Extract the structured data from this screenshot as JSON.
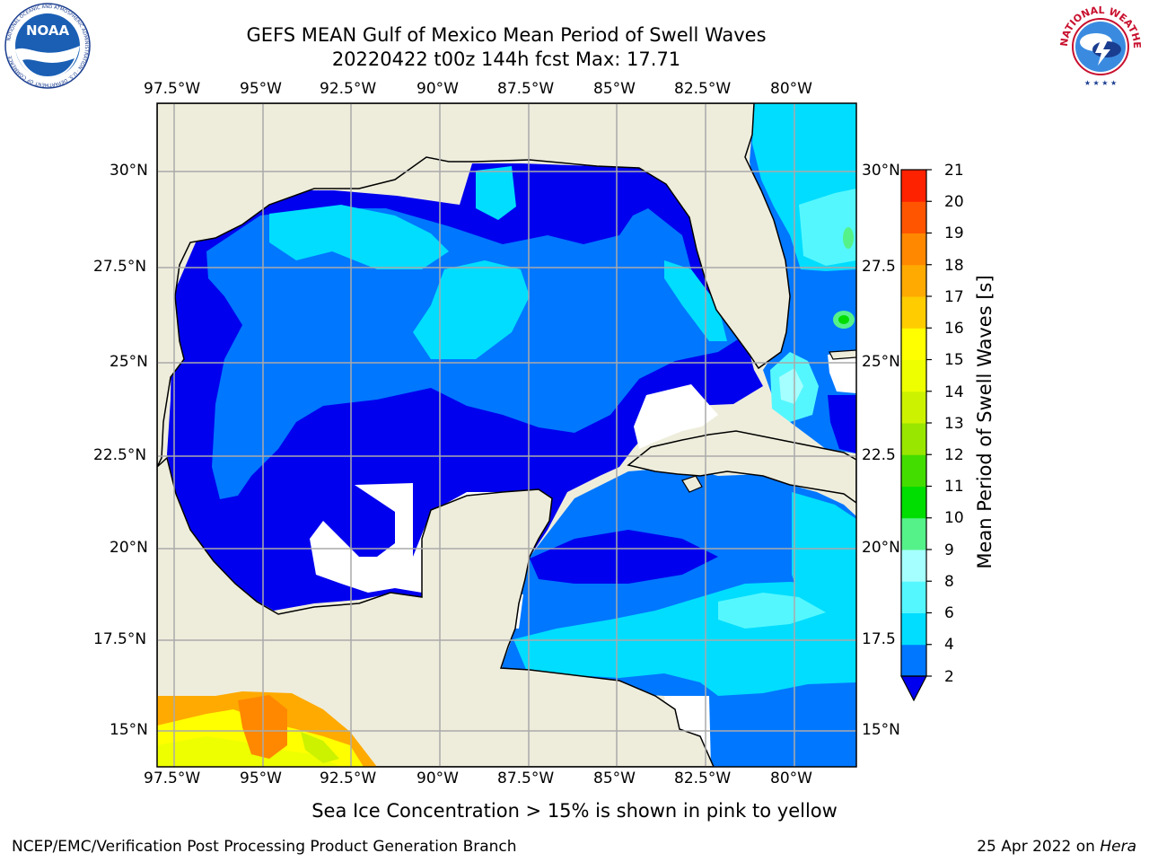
{
  "title": {
    "line1": "GEFS MEAN Gulf of Mexico Mean Period of Swell Waves",
    "line2": "20220422 t00z 144h fcst   Max: 17.71"
  },
  "map": {
    "lon_range": [
      -98,
      -78.3
    ],
    "lat_range": [
      14,
      31.7
    ],
    "lon_ticks": [
      -97.5,
      -95,
      -92.5,
      -90,
      -87.5,
      -85,
      -82.5,
      -80
    ],
    "lon_tick_labels": [
      "97.5°W",
      "95°W",
      "92.5°W",
      "90°W",
      "87.5°W",
      "85°W",
      "82.5°W",
      "80°W"
    ],
    "lat_ticks": [
      30,
      27.5,
      25,
      22.5,
      20,
      17.5,
      15
    ],
    "lat_tick_labels": [
      "30°N",
      "27.5°N",
      "25°N",
      "22.5°N",
      "20°N",
      "17.5°N",
      "15°N"
    ],
    "right_lat_tick_labels": [
      "30°N",
      "27.5",
      "25°N",
      "22.5",
      "20°N",
      "17.5",
      "15°N"
    ],
    "grid": true,
    "colors": {
      "land": "#eeeddc",
      "gridline": "#aaaaaa",
      "coastline": "#000000",
      "no_data": "#ffffff"
    }
  },
  "colorbar": {
    "label": "Mean Period of Swell Waves [s]",
    "ticks": [
      "2",
      "4",
      "6",
      "8",
      "9",
      "10",
      "11",
      "12",
      "13",
      "14",
      "15",
      "16",
      "17",
      "18",
      "19",
      "20",
      "21"
    ],
    "colors": [
      "#0077ff",
      "#00ddff",
      "#55f7ff",
      "#a6ffff",
      "#55f28a",
      "#00dd00",
      "#44dd00",
      "#99e600",
      "#ccf200",
      "#eeff00",
      "#ffff00",
      "#ffcc00",
      "#ffaa00",
      "#ff8800",
      "#ff5500",
      "#ff2200"
    ],
    "under_color": "#0000ee",
    "extend": "min"
  },
  "subtitle": "Sea Ice Concentration > 15% is shown in pink to yellow",
  "footer": {
    "left": "NCEP/EMC/Verification Post Processing Product Generation Branch",
    "right_date": "25 Apr 2022 on ",
    "right_host": "Hera"
  },
  "logos": {
    "left": {
      "text": "NOAA",
      "ring_text": "NATIONAL OCEANIC AND ATMOSPHERIC ADMINISTRATION · U.S. DEPARTMENT OF COMMERCE"
    },
    "right": {
      "ring_text": "NATIONAL WEATHER SERVICE"
    }
  }
}
